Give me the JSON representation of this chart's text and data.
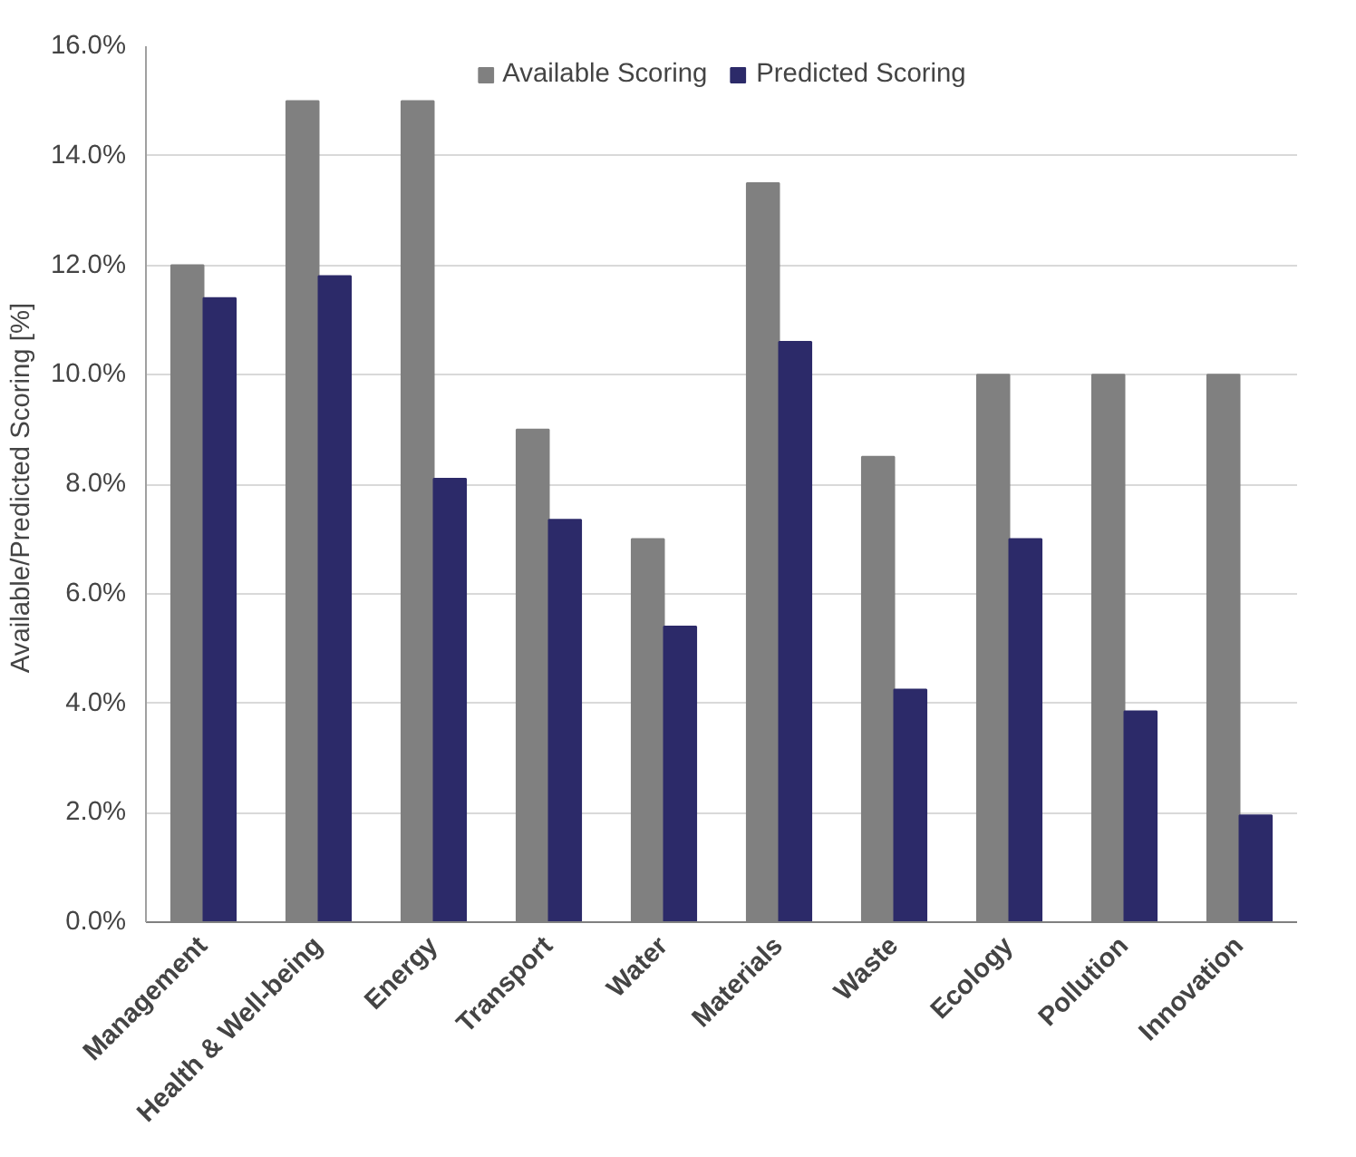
{
  "chart_data": {
    "type": "bar",
    "ylabel": "Available/Predicted  Scoring [%]",
    "categories": [
      "Management",
      "Health & Well-being",
      "Energy",
      "Transport",
      "Water",
      "Materials",
      "Waste",
      "Ecology",
      "Pollution",
      "Innovation"
    ],
    "series": [
      {
        "name": "Available Scoring",
        "color": "#808080",
        "values": [
          12.0,
          15.0,
          15.0,
          9.0,
          7.0,
          13.5,
          8.5,
          10.0,
          10.0,
          10.0
        ]
      },
      {
        "name": "Predicted Scoring",
        "color": "#2c2a69",
        "values": [
          11.4,
          11.8,
          8.1,
          7.35,
          5.4,
          10.6,
          4.25,
          7.0,
          3.85,
          1.95
        ]
      }
    ],
    "ylim": [
      0,
      16
    ],
    "yticks": [
      {
        "value": 0,
        "label": "0.0%"
      },
      {
        "value": 2,
        "label": "2.0%"
      },
      {
        "value": 4,
        "label": "4.0%"
      },
      {
        "value": 6,
        "label": "6.0%"
      },
      {
        "value": 8,
        "label": "8.0%"
      },
      {
        "value": 10,
        "label": "10.0%"
      },
      {
        "value": 12,
        "label": "12.0%"
      },
      {
        "value": 14,
        "label": "14.0%"
      },
      {
        "value": 16,
        "label": "16.0%"
      }
    ],
    "grid": "y",
    "legend": "top"
  }
}
